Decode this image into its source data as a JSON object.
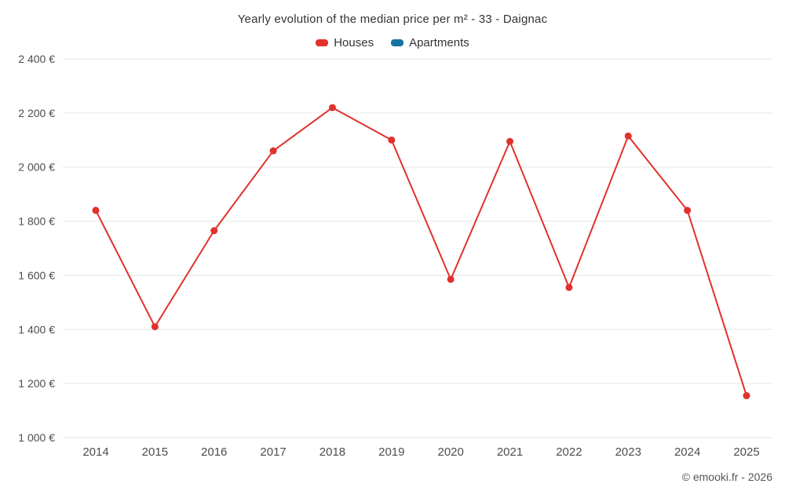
{
  "chart": {
    "title": "Yearly evolution of the median price per m² - 33 - Daignac"
  },
  "chart_data": {
    "type": "line",
    "categories": [
      "2014",
      "2015",
      "2016",
      "2017",
      "2018",
      "2019",
      "2020",
      "2021",
      "2022",
      "2023",
      "2024",
      "2025"
    ],
    "series": [
      {
        "name": "Houses",
        "color": "#e0312d",
        "values": [
          1840,
          1410,
          1765,
          2060,
          2220,
          2100,
          1585,
          2095,
          1555,
          2115,
          1840,
          1155
        ]
      },
      {
        "name": "Apartments",
        "color": "#16739f",
        "values": []
      }
    ],
    "title": "Yearly evolution of the median price per m² - 33 - Daignac",
    "xlabel": "",
    "ylabel": "",
    "ylim": [
      1000,
      2400
    ],
    "ytick_step": 200,
    "ytick_suffix": "€",
    "grid": "horizontal",
    "grid_color": "#e6e6e6",
    "legend_position": "top-center"
  },
  "footer": {
    "credit": "© emooki.fr - 2026"
  }
}
